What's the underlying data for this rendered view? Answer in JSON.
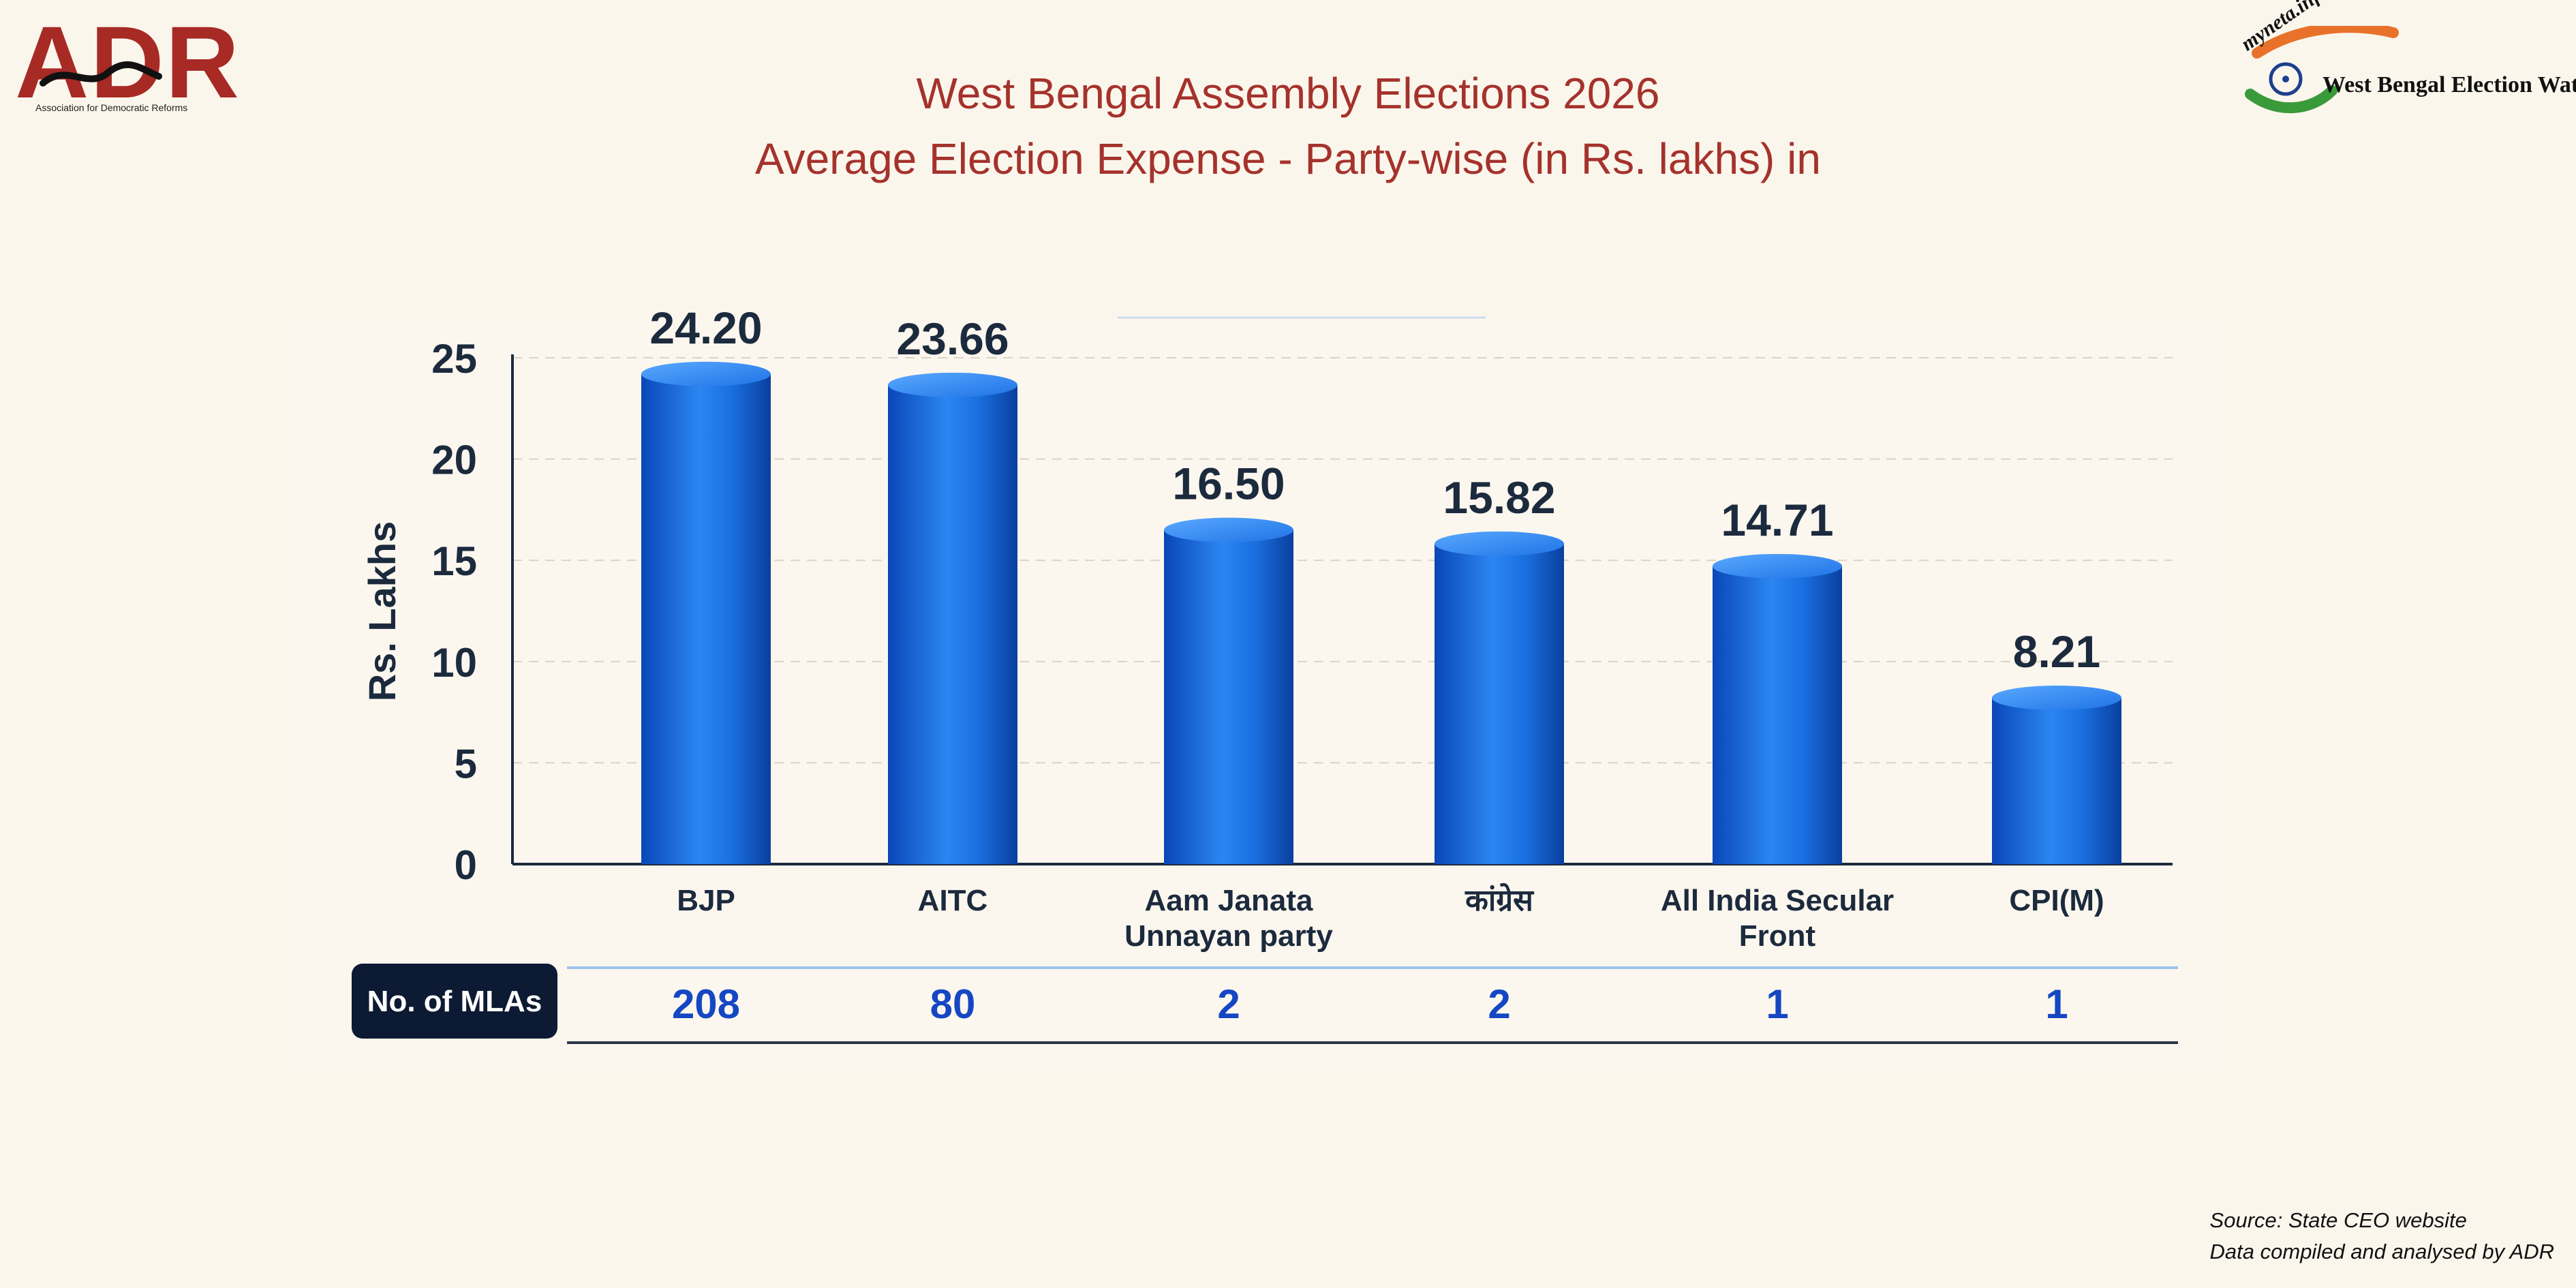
{
  "header": {
    "adr_logo_text": "ADR",
    "adr_logo_subtitle": "Association for Democratic Reforms",
    "myneta_logo_text": "myneta.info",
    "myneta_logo_subtitle": "West Bengal Election Watch",
    "title_line1": "West Bengal Assembly Elections 2026",
    "title_line2": "Average Election Expense - Party-wise (in Rs. lakhs) in"
  },
  "chart_data": {
    "type": "bar",
    "title": "West Bengal Assembly Elections 2026 Average Election Expense - Party-wise (in Rs. lakhs) in",
    "ylabel": "Rs. Lakhs",
    "xlabel": "",
    "ylim": [
      0,
      25
    ],
    "yticks": [
      "0",
      "5",
      "10",
      "15",
      "20",
      "25"
    ],
    "categories": [
      [
        "BJP"
      ],
      [
        "AITC"
      ],
      [
        "Aam Janata",
        "Unnayan party"
      ],
      [
        "कांग्रेस"
      ],
      [
        "All India Secular",
        "Front"
      ],
      [
        "CPI(M)"
      ]
    ],
    "values": [
      24.2,
      23.66,
      16.5,
      15.82,
      14.71,
      8.21
    ],
    "value_labels": [
      "24.20",
      "23.66",
      "16.50",
      "15.82",
      "14.71",
      "8.21"
    ],
    "grid": "horizontal dashed",
    "bar_color": "#1a6fe0",
    "table_row": {
      "label": "No. of MLAs",
      "values": [
        "208",
        "80",
        "2",
        "2",
        "1",
        "1"
      ]
    }
  },
  "footer": {
    "source_line1": "Source: State CEO website",
    "source_line2": "Data compiled and analysed by ADR"
  }
}
